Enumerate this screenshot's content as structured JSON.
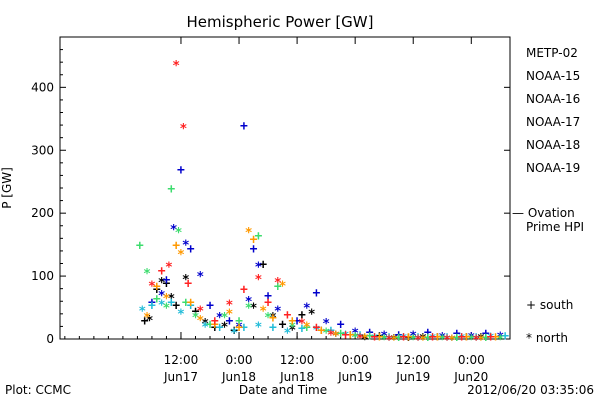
{
  "chart_data": {
    "type": "scatter",
    "title": "Hemispheric Power [GW]",
    "ylabel": "P [GW]",
    "xlabel": "Date and Time",
    "ylim": [
      0,
      480
    ],
    "yticks": [
      0,
      100,
      200,
      300,
      400
    ],
    "xlim_hours": [
      -13.0,
      80.0
    ],
    "x_unit": "hours from 0:00 Jun17",
    "xticks": [
      {
        "x": 12,
        "time": "12:00",
        "date": "Jun17"
      },
      {
        "x": 24,
        "time": "0:00",
        "date": "Jun18"
      },
      {
        "x": 36,
        "time": "12:00",
        "date": "Jun18"
      },
      {
        "x": 48,
        "time": "0:00",
        "date": "Jun19"
      },
      {
        "x": 60,
        "time": "12:00",
        "date": "Jun19"
      },
      {
        "x": 72,
        "time": "0:00",
        "date": "Jun20"
      }
    ],
    "footer_left": "Plot: CCMC",
    "footer_right": "2012/06/20 03:35:06",
    "legend_symbols": {
      "south": "+  south",
      "north": "*  north"
    },
    "ovation": {
      "line1": "— Ovation",
      "line2": "Prime HPI",
      "value": 200,
      "color": "#1f5fbf"
    },
    "series": [
      {
        "name": "METP-02",
        "color": "#000000",
        "points": [
          [
            4.5,
            30,
            "+"
          ],
          [
            5.5,
            35,
            "*"
          ],
          [
            7,
            80,
            "+"
          ],
          [
            8,
            95,
            "*"
          ],
          [
            9,
            90,
            "+"
          ],
          [
            10,
            70,
            "*"
          ],
          [
            11,
            55,
            "+"
          ],
          [
            13,
            100,
            "*"
          ],
          [
            15,
            45,
            "+"
          ],
          [
            17,
            30,
            "*"
          ],
          [
            19,
            20,
            "+"
          ],
          [
            21,
            25,
            "*"
          ],
          [
            23,
            15,
            "+"
          ],
          [
            27,
            55,
            "*"
          ],
          [
            29,
            120,
            "+"
          ],
          [
            31,
            40,
            "*"
          ],
          [
            33,
            25,
            "+"
          ],
          [
            35,
            20,
            "*"
          ],
          [
            37,
            40,
            "+"
          ],
          [
            39,
            45,
            "*"
          ],
          [
            41,
            15,
            "+"
          ],
          [
            44,
            10,
            "*"
          ],
          [
            47,
            8,
            "+"
          ],
          [
            50,
            5,
            "*"
          ],
          [
            53,
            6,
            "+"
          ],
          [
            56,
            5,
            "*"
          ],
          [
            59,
            4,
            "+"
          ],
          [
            62,
            6,
            "*"
          ],
          [
            65,
            5,
            "+"
          ],
          [
            68,
            4,
            "*"
          ],
          [
            71,
            5,
            "+"
          ],
          [
            74,
            6,
            "*"
          ]
        ]
      },
      {
        "name": "NOAA-15",
        "color": "#0000cc",
        "points": [
          [
            6,
            60,
            "+"
          ],
          [
            8,
            75,
            "*"
          ],
          [
            9,
            95,
            "+"
          ],
          [
            10.5,
            180,
            "*"
          ],
          [
            12,
            270,
            "+"
          ],
          [
            13,
            155,
            "*"
          ],
          [
            14,
            145,
            "+"
          ],
          [
            16,
            105,
            "*"
          ],
          [
            18,
            55,
            "+"
          ],
          [
            20,
            40,
            "*"
          ],
          [
            22,
            30,
            "+"
          ],
          [
            24,
            25,
            "*"
          ],
          [
            25,
            340,
            "+"
          ],
          [
            26,
            65,
            "*"
          ],
          [
            27,
            145,
            "+"
          ],
          [
            28,
            120,
            "*"
          ],
          [
            30,
            70,
            "+"
          ],
          [
            32,
            50,
            "*"
          ],
          [
            36,
            30,
            "+"
          ],
          [
            38,
            55,
            "*"
          ],
          [
            40,
            75,
            "+"
          ],
          [
            42,
            30,
            "*"
          ],
          [
            45,
            25,
            "+"
          ],
          [
            48,
            15,
            "*"
          ],
          [
            51,
            12,
            "+"
          ],
          [
            54,
            10,
            "*"
          ],
          [
            57,
            8,
            "+"
          ],
          [
            60,
            10,
            "*"
          ],
          [
            63,
            12,
            "+"
          ],
          [
            66,
            8,
            "*"
          ],
          [
            69,
            10,
            "+"
          ],
          [
            72,
            8,
            "*"
          ],
          [
            75,
            10,
            "+"
          ],
          [
            78,
            9,
            "*"
          ]
        ]
      },
      {
        "name": "NOAA-16",
        "color": "#22bcd8",
        "points": [
          [
            4,
            50,
            "*"
          ],
          [
            6,
            55,
            "+"
          ],
          [
            8,
            60,
            "*"
          ],
          [
            10,
            60,
            "+"
          ],
          [
            12,
            45,
            "*"
          ],
          [
            14,
            55,
            "+"
          ],
          [
            17,
            25,
            "*"
          ],
          [
            20,
            20,
            "+"
          ],
          [
            23,
            15,
            "*"
          ],
          [
            25,
            20,
            "+"
          ],
          [
            28,
            25,
            "*"
          ],
          [
            31,
            20,
            "+"
          ],
          [
            34,
            15,
            "*"
          ],
          [
            37,
            18,
            "+"
          ],
          [
            40,
            20,
            "*"
          ],
          [
            43,
            15,
            "+"
          ],
          [
            46,
            10,
            "*"
          ],
          [
            49,
            8,
            "+"
          ],
          [
            52,
            6,
            "*"
          ],
          [
            55,
            5,
            "+"
          ],
          [
            58,
            6,
            "*"
          ],
          [
            61,
            5,
            "+"
          ],
          [
            64,
            6,
            "*"
          ],
          [
            67,
            5,
            "+"
          ],
          [
            70,
            6,
            "*"
          ],
          [
            73,
            5,
            "+"
          ],
          [
            76,
            7,
            "*"
          ],
          [
            79,
            6,
            "+"
          ]
        ]
      },
      {
        "name": "NOAA-17",
        "color": "#3ddc6e",
        "points": [
          [
            3.5,
            150,
            "+"
          ],
          [
            5,
            110,
            "*"
          ],
          [
            7,
            65,
            "+"
          ],
          [
            9,
            55,
            "*"
          ],
          [
            10,
            240,
            "+"
          ],
          [
            11.5,
            175,
            "*"
          ],
          [
            13,
            60,
            "+"
          ],
          [
            15,
            40,
            "*"
          ],
          [
            18,
            25,
            "+"
          ],
          [
            21,
            40,
            "*"
          ],
          [
            24,
            30,
            "+"
          ],
          [
            26,
            55,
            "*"
          ],
          [
            28,
            165,
            "+"
          ],
          [
            30,
            40,
            "*"
          ],
          [
            32,
            85,
            "+"
          ],
          [
            35,
            25,
            "*"
          ],
          [
            38,
            20,
            "+"
          ],
          [
            42,
            15,
            "*"
          ],
          [
            45,
            10,
            "+"
          ],
          [
            48,
            8,
            "*"
          ],
          [
            51,
            6,
            "+"
          ],
          [
            54,
            5,
            "*"
          ],
          [
            57,
            4,
            "+"
          ],
          [
            60,
            5,
            "*"
          ],
          [
            63,
            4,
            "+"
          ],
          [
            66,
            5,
            "*"
          ],
          [
            69,
            4,
            "+"
          ],
          [
            72,
            5,
            "*"
          ],
          [
            75,
            4,
            "+"
          ],
          [
            78,
            5,
            "*"
          ]
        ]
      },
      {
        "name": "NOAA-18",
        "color": "#ff9900",
        "points": [
          [
            5,
            40,
            "*"
          ],
          [
            7,
            85,
            "+"
          ],
          [
            9,
            70,
            "*"
          ],
          [
            11,
            150,
            "+"
          ],
          [
            12,
            140,
            "*"
          ],
          [
            14,
            60,
            "+"
          ],
          [
            16,
            35,
            "*"
          ],
          [
            19,
            25,
            "+"
          ],
          [
            22,
            45,
            "*"
          ],
          [
            24,
            20,
            "+"
          ],
          [
            26,
            175,
            "*"
          ],
          [
            27,
            160,
            "+"
          ],
          [
            29,
            50,
            "*"
          ],
          [
            31,
            35,
            "+"
          ],
          [
            33,
            90,
            "*"
          ],
          [
            35,
            30,
            "+"
          ],
          [
            38,
            25,
            "*"
          ],
          [
            41,
            15,
            "+"
          ],
          [
            44,
            10,
            "*"
          ],
          [
            47,
            8,
            "+"
          ],
          [
            50,
            6,
            "*"
          ],
          [
            53,
            5,
            "+"
          ],
          [
            56,
            4,
            "*"
          ],
          [
            59,
            5,
            "+"
          ],
          [
            62,
            4,
            "*"
          ],
          [
            65,
            5,
            "+"
          ],
          [
            68,
            4,
            "*"
          ],
          [
            71,
            5,
            "+"
          ],
          [
            74,
            4,
            "*"
          ],
          [
            77,
            5,
            "+"
          ]
        ]
      },
      {
        "name": "NOAA-19",
        "color": "#ff2222",
        "points": [
          [
            6,
            90,
            "*"
          ],
          [
            8,
            110,
            "+"
          ],
          [
            9.5,
            120,
            "*"
          ],
          [
            11,
            440,
            "*"
          ],
          [
            12.5,
            340,
            "*"
          ],
          [
            13.5,
            90,
            "+"
          ],
          [
            16,
            50,
            "*"
          ],
          [
            19,
            30,
            "+"
          ],
          [
            22,
            60,
            "*"
          ],
          [
            25,
            80,
            "+"
          ],
          [
            28,
            100,
            "*"
          ],
          [
            30,
            60,
            "+"
          ],
          [
            32,
            95,
            "*"
          ],
          [
            34,
            40,
            "+"
          ],
          [
            37,
            30,
            "*"
          ],
          [
            40,
            20,
            "+"
          ],
          [
            43,
            12,
            "*"
          ],
          [
            46,
            8,
            "+"
          ],
          [
            49,
            6,
            "*"
          ],
          [
            52,
            5,
            "+"
          ],
          [
            55,
            4,
            "*"
          ],
          [
            58,
            5,
            "+"
          ],
          [
            61,
            4,
            "*"
          ],
          [
            64,
            5,
            "+"
          ],
          [
            67,
            4,
            "*"
          ],
          [
            70,
            5,
            "+"
          ],
          [
            73,
            4,
            "*"
          ],
          [
            76,
            5,
            "+"
          ]
        ]
      }
    ]
  }
}
